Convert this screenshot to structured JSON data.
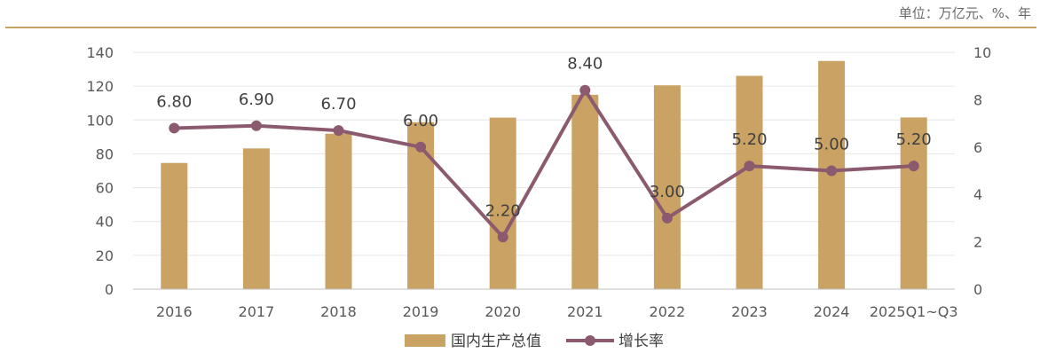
{
  "unit_label": "单位：万亿元、%、年",
  "colors": {
    "bar": "#C9A264",
    "line": "#8C5A6E",
    "top_rule": "#C9A264",
    "grid": "#E6E6E6",
    "axis": "#BFBFBF"
  },
  "legend": [
    {
      "label": "国内生产总值",
      "type": "bar"
    },
    {
      "label": "增长率",
      "type": "line"
    }
  ],
  "chart_data": {
    "type": "bar",
    "categories": [
      "2016",
      "2017",
      "2018",
      "2019",
      "2020",
      "2021",
      "2022",
      "2023",
      "2024",
      "2025Q1~Q3"
    ],
    "series": [
      {
        "name": "国内生产总值",
        "type": "bar",
        "axis": "left",
        "values": [
          74.6,
          83.2,
          91.9,
          98.7,
          101.4,
          114.9,
          120.5,
          126.1,
          134.9,
          101.5
        ]
      },
      {
        "name": "增长率",
        "type": "line",
        "axis": "right",
        "values": [
          6.8,
          6.9,
          6.7,
          6.0,
          2.2,
          8.4,
          3.0,
          5.2,
          5.0,
          5.2
        ],
        "labels": [
          "6.80",
          "6.90",
          "6.70",
          "6.00",
          "2.20",
          "8.40",
          "3.00",
          "5.20",
          "5.00",
          "5.20"
        ]
      }
    ],
    "y_left": {
      "ylim": [
        0,
        140
      ],
      "ticks": [
        "0",
        "20",
        "40",
        "60",
        "80",
        "100",
        "120",
        "140"
      ]
    },
    "y_right": {
      "ylim": [
        0,
        10
      ],
      "ticks": [
        "0",
        "2",
        "4",
        "6",
        "8",
        "10"
      ]
    },
    "grid": true,
    "legend_position": "bottom-center"
  }
}
